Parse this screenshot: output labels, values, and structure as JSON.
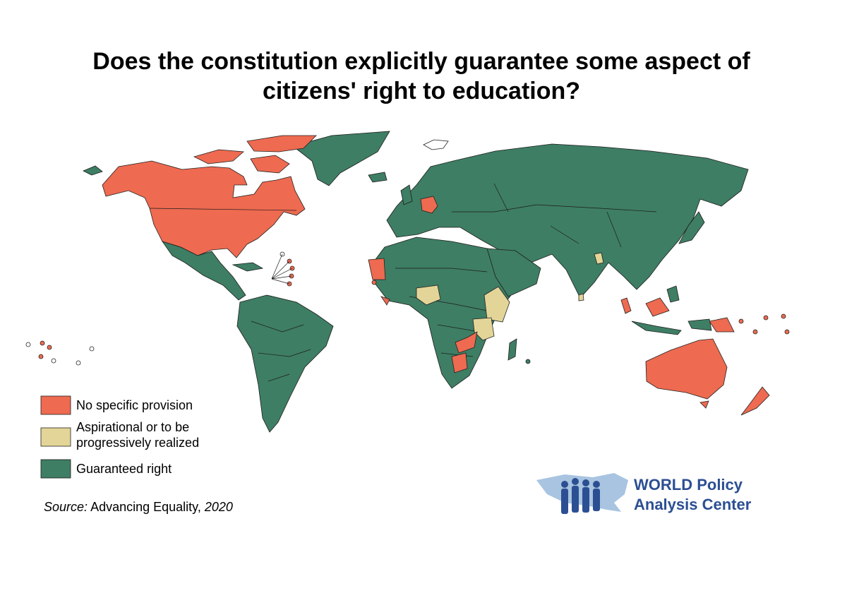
{
  "header": {
    "title": [
      "Does the constitution explicitly guarantee some aspect of",
      "citizens' right to education?"
    ]
  },
  "legend": {
    "items": [
      "No specific provision",
      "Aspirational or to be progressively realized",
      "Guaranteed right"
    ]
  },
  "source": {
    "label": "Source:",
    "name": "Advancing Equality,",
    "year": "2020"
  },
  "logo": {
    "lines": [
      "WORLD Policy",
      "Analysis Center"
    ]
  }
}
